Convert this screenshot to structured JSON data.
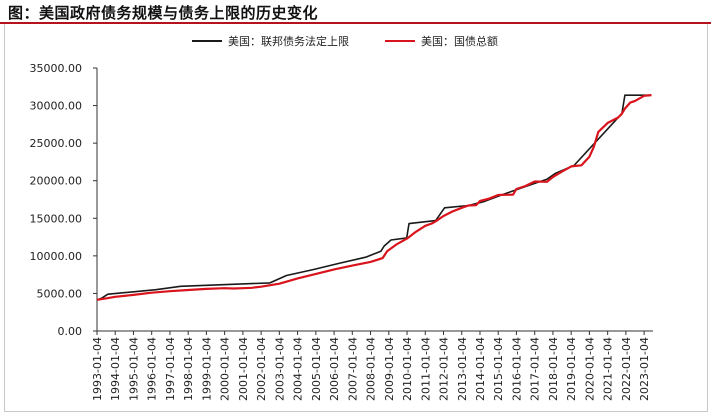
{
  "header": {
    "title": "图：美国政府债务规模与债务上限的历史变化"
  },
  "colors": {
    "title_rule": "#b5121b",
    "series_limit": "#1a1a1a",
    "series_debt": "#d9141c",
    "axis": "#333333"
  },
  "chart_data": {
    "type": "line",
    "title": "",
    "xlabel": "",
    "ylabel": "",
    "ylim": [
      0,
      35000
    ],
    "yticks": [
      0,
      5000,
      10000,
      15000,
      20000,
      25000,
      30000,
      35000
    ],
    "ytick_labels": [
      "0.00",
      "5000.00",
      "10000.00",
      "15000.00",
      "20000.00",
      "25000.00",
      "30000.00",
      "35000.00"
    ],
    "xlim": [
      "1993-01-04",
      "2023-07-01"
    ],
    "xtick_labels": [
      "1993-01-04",
      "1994-01-04",
      "1995-01-04",
      "1996-01-04",
      "1997-01-04",
      "1998-01-04",
      "1999-01-04",
      "2000-01-04",
      "2001-01-04",
      "2002-01-04",
      "2003-01-04",
      "2004-01-04",
      "2005-01-04",
      "2006-01-04",
      "2007-01-04",
      "2008-01-04",
      "2009-01-04",
      "2010-01-04",
      "2011-01-04",
      "2012-01-04",
      "2013-01-04",
      "2014-01-04",
      "2015-01-04",
      "2016-01-04",
      "2017-01-04",
      "2018-01-04",
      "2019-01-04",
      "2020-01-04",
      "2021-01-04",
      "2022-01-04",
      "2023-01-04"
    ],
    "legend_position": "top",
    "grid": false,
    "series": [
      {
        "name": "美国：联邦债务法定上限",
        "color": "#1a1a1a",
        "points": [
          [
            "1993-01-04",
            4145
          ],
          [
            "1993-04-06",
            4370
          ],
          [
            "1993-08-10",
            4900
          ],
          [
            "1996-03-29",
            5500
          ],
          [
            "1997-08-05",
            5950
          ],
          [
            "2002-06-28",
            6400
          ],
          [
            "2003-05-27",
            7384
          ],
          [
            "2004-11-19",
            8184
          ],
          [
            "2006-03-20",
            8965
          ],
          [
            "2007-09-29",
            9815
          ],
          [
            "2008-07-30",
            10615
          ],
          [
            "2008-10-03",
            11315
          ],
          [
            "2009-02-17",
            12104
          ],
          [
            "2009-12-28",
            12394
          ],
          [
            "2010-02-12",
            14294
          ],
          [
            "2011-08-02",
            14694
          ],
          [
            "2011-09-22",
            15194
          ],
          [
            "2012-01-27",
            16394
          ],
          [
            "2013-05-19",
            16699
          ],
          [
            "2014-03-15",
            17212
          ],
          [
            "2015-03-16",
            18113
          ],
          [
            "2016-01-01",
            18800
          ],
          [
            "2017-03-16",
            19809
          ],
          [
            "2017-09-08",
            20200
          ],
          [
            "2018-03-01",
            21000
          ],
          [
            "2019-03-02",
            22030
          ],
          [
            "2021-08-01",
            28401
          ],
          [
            "2021-10-14",
            28881
          ],
          [
            "2021-12-16",
            31381
          ],
          [
            "2023-06-01",
            31381
          ]
        ]
      },
      {
        "name": "美国：国债总额",
        "color": "#d9141c",
        "points": [
          [
            "1993-01-04",
            4150
          ],
          [
            "1993-06-01",
            4300
          ],
          [
            "1994-01-04",
            4550
          ],
          [
            "1995-01-04",
            4800
          ],
          [
            "1996-01-04",
            5100
          ],
          [
            "1997-01-04",
            5300
          ],
          [
            "1998-01-04",
            5450
          ],
          [
            "1999-01-04",
            5600
          ],
          [
            "2000-01-04",
            5700
          ],
          [
            "2000-07-01",
            5650
          ],
          [
            "2001-01-04",
            5700
          ],
          [
            "2001-07-01",
            5750
          ],
          [
            "2002-01-04",
            5900
          ],
          [
            "2003-01-04",
            6300
          ],
          [
            "2004-01-04",
            7000
          ],
          [
            "2005-01-04",
            7600
          ],
          [
            "2006-01-04",
            8200
          ],
          [
            "2007-01-04",
            8700
          ],
          [
            "2008-01-04",
            9200
          ],
          [
            "2008-09-01",
            9700
          ],
          [
            "2008-12-01",
            10600
          ],
          [
            "2009-06-01",
            11500
          ],
          [
            "2010-01-04",
            12300
          ],
          [
            "2010-07-01",
            13200
          ],
          [
            "2011-01-04",
            14000
          ],
          [
            "2011-05-15",
            14300
          ],
          [
            "2011-08-02",
            14600
          ],
          [
            "2012-01-04",
            15300
          ],
          [
            "2012-07-01",
            15900
          ],
          [
            "2013-01-04",
            16400
          ],
          [
            "2013-05-19",
            16700
          ],
          [
            "2013-10-17",
            16740
          ],
          [
            "2014-01-04",
            17300
          ],
          [
            "2014-07-01",
            17600
          ],
          [
            "2015-01-04",
            18100
          ],
          [
            "2015-10-30",
            18150
          ],
          [
            "2016-01-04",
            18900
          ],
          [
            "2016-07-01",
            19300
          ],
          [
            "2017-01-04",
            19900
          ],
          [
            "2017-09-08",
            19850
          ],
          [
            "2018-01-04",
            20500
          ],
          [
            "2018-07-01",
            21200
          ],
          [
            "2019-01-04",
            21900
          ],
          [
            "2019-07-31",
            22050
          ],
          [
            "2020-01-04",
            23200
          ],
          [
            "2020-04-01",
            24500
          ],
          [
            "2020-07-01",
            26500
          ],
          [
            "2021-01-04",
            27700
          ],
          [
            "2021-07-31",
            28400
          ],
          [
            "2021-10-14",
            28900
          ],
          [
            "2021-12-16",
            29600
          ],
          [
            "2022-04-01",
            30400
          ],
          [
            "2022-07-01",
            30600
          ],
          [
            "2023-01-04",
            31300
          ],
          [
            "2023-06-01",
            31400
          ]
        ]
      }
    ]
  }
}
